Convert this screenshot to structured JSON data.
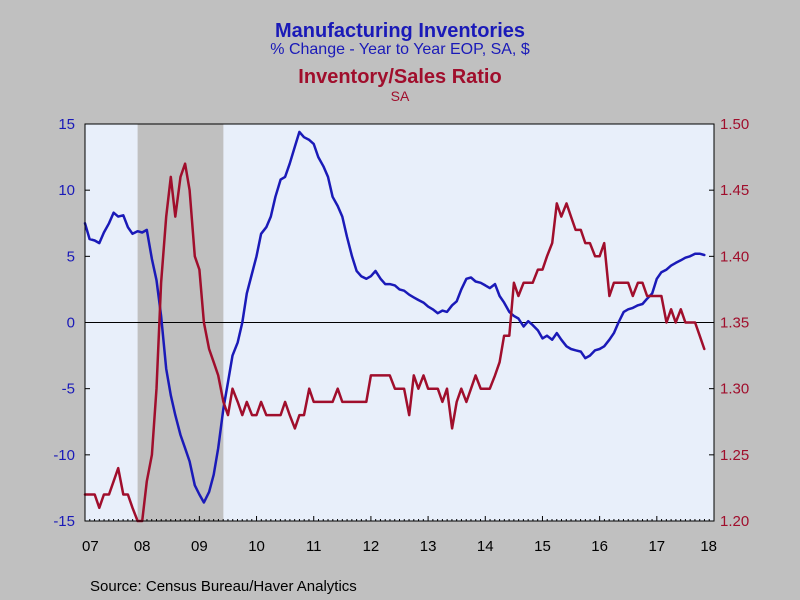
{
  "titles": {
    "line1": "Manufacturing Inventories",
    "line2": "% Change - Year to Year     EOP, SA, $",
    "line3": "Inventory/Sales Ratio",
    "line4": "SA"
  },
  "source": "Source:  Census Bureau/Haver Analytics",
  "colors": {
    "inventories": "#1a1ab8",
    "ratio": "#a00e2c",
    "plot_bg": "#e8effa",
    "recession": "#c0c0c0",
    "page_bg": "#c0c0c0"
  },
  "chart_data": {
    "type": "line",
    "x_tick_labels": [
      "07",
      "08",
      "09",
      "10",
      "11",
      "12",
      "13",
      "14",
      "15",
      "16",
      "17",
      "18"
    ],
    "x_range": [
      2007.0,
      2018.0
    ],
    "left_axis": {
      "range": [
        -15,
        15
      ],
      "ticks": [
        15,
        10,
        5,
        0,
        -5,
        -10,
        -15
      ]
    },
    "right_axis": {
      "range": [
        1.2,
        1.5
      ],
      "ticks": [
        "1.50",
        "1.45",
        "1.40",
        "1.35",
        "1.30",
        "1.25",
        "1.20"
      ]
    },
    "zero_line": 0,
    "recession_shading": [
      2007.92,
      2009.42
    ],
    "series": [
      {
        "name": "Manufacturing Inventories",
        "axis": "left",
        "points": [
          [
            2007.0,
            7.5
          ],
          [
            2007.08,
            6.3
          ],
          [
            2007.17,
            6.2
          ],
          [
            2007.25,
            6.0
          ],
          [
            2007.33,
            6.8
          ],
          [
            2007.42,
            7.5
          ],
          [
            2007.5,
            8.3
          ],
          [
            2007.58,
            8.0
          ],
          [
            2007.67,
            8.1
          ],
          [
            2007.75,
            7.2
          ],
          [
            2007.83,
            6.7
          ],
          [
            2007.92,
            6.9
          ],
          [
            2008.0,
            6.8
          ],
          [
            2008.08,
            7.0
          ],
          [
            2008.17,
            4.8
          ],
          [
            2008.25,
            3.2
          ],
          [
            2008.33,
            0.5
          ],
          [
            2008.42,
            -3.5
          ],
          [
            2008.5,
            -5.5
          ],
          [
            2008.58,
            -7.0
          ],
          [
            2008.67,
            -8.5
          ],
          [
            2008.75,
            -9.5
          ],
          [
            2008.83,
            -10.5
          ],
          [
            2008.92,
            -12.3
          ],
          [
            2009.0,
            -13.0
          ],
          [
            2009.08,
            -13.6
          ],
          [
            2009.17,
            -12.8
          ],
          [
            2009.25,
            -11.5
          ],
          [
            2009.33,
            -9.5
          ],
          [
            2009.42,
            -6.5
          ],
          [
            2009.5,
            -4.5
          ],
          [
            2009.58,
            -2.5
          ],
          [
            2009.67,
            -1.5
          ],
          [
            2009.75,
            0.0
          ],
          [
            2009.83,
            2.2
          ],
          [
            2009.92,
            3.7
          ],
          [
            2010.0,
            5.0
          ],
          [
            2010.08,
            6.7
          ],
          [
            2010.17,
            7.2
          ],
          [
            2010.25,
            8.0
          ],
          [
            2010.33,
            9.5
          ],
          [
            2010.42,
            10.8
          ],
          [
            2010.5,
            11.0
          ],
          [
            2010.58,
            12.0
          ],
          [
            2010.67,
            13.3
          ],
          [
            2010.75,
            14.4
          ],
          [
            2010.83,
            14.0
          ],
          [
            2010.92,
            13.8
          ],
          [
            2011.0,
            13.5
          ],
          [
            2011.08,
            12.5
          ],
          [
            2011.17,
            11.8
          ],
          [
            2011.25,
            11.0
          ],
          [
            2011.33,
            9.5
          ],
          [
            2011.42,
            8.8
          ],
          [
            2011.5,
            8.0
          ],
          [
            2011.58,
            6.5
          ],
          [
            2011.67,
            5.0
          ],
          [
            2011.75,
            3.9
          ],
          [
            2011.83,
            3.5
          ],
          [
            2011.92,
            3.3
          ],
          [
            2012.0,
            3.5
          ],
          [
            2012.08,
            3.9
          ],
          [
            2012.17,
            3.3
          ],
          [
            2012.25,
            2.9
          ],
          [
            2012.33,
            2.9
          ],
          [
            2012.42,
            2.8
          ],
          [
            2012.5,
            2.5
          ],
          [
            2012.58,
            2.4
          ],
          [
            2012.67,
            2.1
          ],
          [
            2012.75,
            1.9
          ],
          [
            2012.83,
            1.7
          ],
          [
            2012.92,
            1.5
          ],
          [
            2013.0,
            1.2
          ],
          [
            2013.08,
            1.0
          ],
          [
            2013.17,
            0.7
          ],
          [
            2013.25,
            0.9
          ],
          [
            2013.33,
            0.8
          ],
          [
            2013.42,
            1.3
          ],
          [
            2013.5,
            1.6
          ],
          [
            2013.58,
            2.5
          ],
          [
            2013.67,
            3.3
          ],
          [
            2013.75,
            3.4
          ],
          [
            2013.83,
            3.1
          ],
          [
            2013.92,
            3.0
          ],
          [
            2014.0,
            2.8
          ],
          [
            2014.08,
            2.6
          ],
          [
            2014.17,
            2.9
          ],
          [
            2014.25,
            2.0
          ],
          [
            2014.33,
            1.5
          ],
          [
            2014.42,
            0.8
          ],
          [
            2014.5,
            0.5
          ],
          [
            2014.58,
            0.3
          ],
          [
            2014.67,
            -0.3
          ],
          [
            2014.75,
            0.1
          ],
          [
            2014.83,
            -0.2
          ],
          [
            2014.92,
            -0.6
          ],
          [
            2015.0,
            -1.2
          ],
          [
            2015.08,
            -1.0
          ],
          [
            2015.17,
            -1.3
          ],
          [
            2015.25,
            -0.8
          ],
          [
            2015.33,
            -1.3
          ],
          [
            2015.42,
            -1.8
          ],
          [
            2015.5,
            -2.0
          ],
          [
            2015.58,
            -2.1
          ],
          [
            2015.67,
            -2.2
          ],
          [
            2015.75,
            -2.7
          ],
          [
            2015.83,
            -2.5
          ],
          [
            2015.92,
            -2.1
          ],
          [
            2016.0,
            -2.0
          ],
          [
            2016.08,
            -1.8
          ],
          [
            2016.17,
            -1.3
          ],
          [
            2016.25,
            -0.8
          ],
          [
            2016.33,
            0.0
          ],
          [
            2016.42,
            0.8
          ],
          [
            2016.5,
            1.0
          ],
          [
            2016.58,
            1.1
          ],
          [
            2016.67,
            1.3
          ],
          [
            2016.75,
            1.4
          ],
          [
            2016.83,
            1.8
          ],
          [
            2016.92,
            2.2
          ],
          [
            2017.0,
            3.3
          ],
          [
            2017.08,
            3.8
          ],
          [
            2017.17,
            4.0
          ],
          [
            2017.25,
            4.3
          ],
          [
            2017.33,
            4.5
          ],
          [
            2017.42,
            4.7
          ],
          [
            2017.5,
            4.9
          ],
          [
            2017.58,
            5.0
          ],
          [
            2017.67,
            5.2
          ],
          [
            2017.75,
            5.2
          ],
          [
            2017.83,
            5.1
          ]
        ]
      },
      {
        "name": "Inventory/Sales Ratio",
        "axis": "right",
        "points": [
          [
            2007.0,
            1.22
          ],
          [
            2007.08,
            1.22
          ],
          [
            2007.17,
            1.22
          ],
          [
            2007.25,
            1.21
          ],
          [
            2007.33,
            1.22
          ],
          [
            2007.42,
            1.22
          ],
          [
            2007.5,
            1.23
          ],
          [
            2007.58,
            1.24
          ],
          [
            2007.67,
            1.22
          ],
          [
            2007.75,
            1.22
          ],
          [
            2007.83,
            1.21
          ],
          [
            2007.92,
            1.2
          ],
          [
            2008.0,
            1.2
          ],
          [
            2008.08,
            1.23
          ],
          [
            2008.17,
            1.25
          ],
          [
            2008.25,
            1.3
          ],
          [
            2008.33,
            1.38
          ],
          [
            2008.42,
            1.43
          ],
          [
            2008.5,
            1.46
          ],
          [
            2008.58,
            1.43
          ],
          [
            2008.67,
            1.46
          ],
          [
            2008.75,
            1.47
          ],
          [
            2008.83,
            1.45
          ],
          [
            2008.92,
            1.4
          ],
          [
            2009.0,
            1.39
          ],
          [
            2009.08,
            1.35
          ],
          [
            2009.17,
            1.33
          ],
          [
            2009.25,
            1.32
          ],
          [
            2009.33,
            1.31
          ],
          [
            2009.42,
            1.29
          ],
          [
            2009.5,
            1.28
          ],
          [
            2009.58,
            1.3
          ],
          [
            2009.67,
            1.29
          ],
          [
            2009.75,
            1.28
          ],
          [
            2009.83,
            1.29
          ],
          [
            2009.92,
            1.28
          ],
          [
            2010.0,
            1.28
          ],
          [
            2010.08,
            1.29
          ],
          [
            2010.17,
            1.28
          ],
          [
            2010.25,
            1.28
          ],
          [
            2010.33,
            1.28
          ],
          [
            2010.42,
            1.28
          ],
          [
            2010.5,
            1.29
          ],
          [
            2010.58,
            1.28
          ],
          [
            2010.67,
            1.27
          ],
          [
            2010.75,
            1.28
          ],
          [
            2010.83,
            1.28
          ],
          [
            2010.92,
            1.3
          ],
          [
            2011.0,
            1.29
          ],
          [
            2011.08,
            1.29
          ],
          [
            2011.17,
            1.29
          ],
          [
            2011.25,
            1.29
          ],
          [
            2011.33,
            1.29
          ],
          [
            2011.42,
            1.3
          ],
          [
            2011.5,
            1.29
          ],
          [
            2011.58,
            1.29
          ],
          [
            2011.67,
            1.29
          ],
          [
            2011.75,
            1.29
          ],
          [
            2011.83,
            1.29
          ],
          [
            2011.92,
            1.29
          ],
          [
            2012.0,
            1.31
          ],
          [
            2012.08,
            1.31
          ],
          [
            2012.17,
            1.31
          ],
          [
            2012.25,
            1.31
          ],
          [
            2012.33,
            1.31
          ],
          [
            2012.42,
            1.3
          ],
          [
            2012.5,
            1.3
          ],
          [
            2012.58,
            1.3
          ],
          [
            2012.67,
            1.28
          ],
          [
            2012.75,
            1.31
          ],
          [
            2012.83,
            1.3
          ],
          [
            2012.92,
            1.31
          ],
          [
            2013.0,
            1.3
          ],
          [
            2013.08,
            1.3
          ],
          [
            2013.17,
            1.3
          ],
          [
            2013.25,
            1.29
          ],
          [
            2013.33,
            1.3
          ],
          [
            2013.42,
            1.27
          ],
          [
            2013.5,
            1.29
          ],
          [
            2013.58,
            1.3
          ],
          [
            2013.67,
            1.29
          ],
          [
            2013.75,
            1.3
          ],
          [
            2013.83,
            1.31
          ],
          [
            2013.92,
            1.3
          ],
          [
            2014.0,
            1.3
          ],
          [
            2014.08,
            1.3
          ],
          [
            2014.17,
            1.31
          ],
          [
            2014.25,
            1.32
          ],
          [
            2014.33,
            1.34
          ],
          [
            2014.42,
            1.34
          ],
          [
            2014.5,
            1.38
          ],
          [
            2014.58,
            1.37
          ],
          [
            2014.67,
            1.38
          ],
          [
            2014.75,
            1.38
          ],
          [
            2014.83,
            1.38
          ],
          [
            2014.92,
            1.39
          ],
          [
            2015.0,
            1.39
          ],
          [
            2015.08,
            1.4
          ],
          [
            2015.17,
            1.41
          ],
          [
            2015.25,
            1.44
          ],
          [
            2015.33,
            1.43
          ],
          [
            2015.42,
            1.44
          ],
          [
            2015.5,
            1.43
          ],
          [
            2015.58,
            1.42
          ],
          [
            2015.67,
            1.42
          ],
          [
            2015.75,
            1.41
          ],
          [
            2015.83,
            1.41
          ],
          [
            2015.92,
            1.4
          ],
          [
            2016.0,
            1.4
          ],
          [
            2016.08,
            1.41
          ],
          [
            2016.17,
            1.37
          ],
          [
            2016.25,
            1.38
          ],
          [
            2016.33,
            1.38
          ],
          [
            2016.42,
            1.38
          ],
          [
            2016.5,
            1.38
          ],
          [
            2016.58,
            1.37
          ],
          [
            2016.67,
            1.38
          ],
          [
            2016.75,
            1.38
          ],
          [
            2016.83,
            1.37
          ],
          [
            2016.92,
            1.37
          ],
          [
            2017.0,
            1.37
          ],
          [
            2017.08,
            1.37
          ],
          [
            2017.17,
            1.35
          ],
          [
            2017.25,
            1.36
          ],
          [
            2017.33,
            1.35
          ],
          [
            2017.42,
            1.36
          ],
          [
            2017.5,
            1.35
          ],
          [
            2017.58,
            1.35
          ],
          [
            2017.67,
            1.35
          ],
          [
            2017.75,
            1.34
          ],
          [
            2017.83,
            1.33
          ]
        ]
      }
    ]
  }
}
